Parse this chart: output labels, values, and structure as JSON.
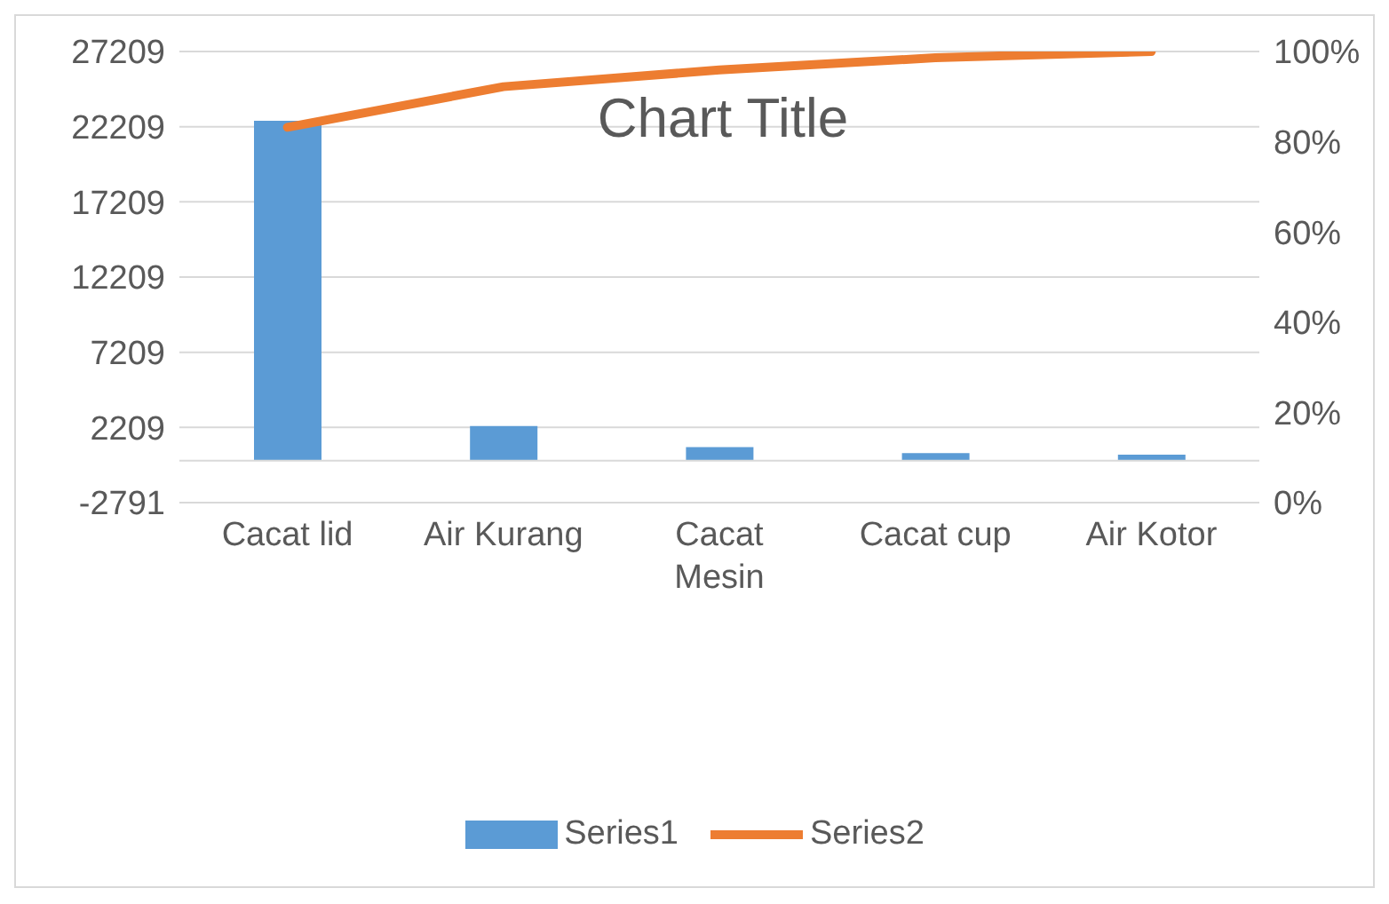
{
  "chart_data": {
    "type": "bar",
    "title": "Chart Title",
    "categories": [
      "Cacat lid",
      "Air Kurang",
      "Cacat Mesin",
      "Cacat cup",
      "Air Kotor"
    ],
    "series": [
      {
        "name": "Series1",
        "color": "#5b9bd5",
        "values": [
          22600,
          2300,
          900,
          500,
          400
        ]
      },
      {
        "name": "Series2",
        "type": "line",
        "axis": "y2",
        "color": "#ed7d31",
        "values": [
          83.2,
          92.2,
          95.9,
          98.6,
          100
        ]
      }
    ],
    "ylim": [
      -2791,
      27209
    ],
    "yticks": [
      -2791,
      2209,
      7209,
      12209,
      17209,
      22209,
      27209
    ],
    "y2lim": [
      0,
      100
    ],
    "y2ticks": [
      {
        "value": 0,
        "label": "0%"
      },
      {
        "value": 20,
        "label": "20%"
      },
      {
        "value": 40,
        "label": "40%"
      },
      {
        "value": 60,
        "label": "60%"
      },
      {
        "value": 80,
        "label": "80%"
      },
      {
        "value": 100,
        "label": "100%"
      }
    ],
    "grid": "y",
    "legend": "bottom",
    "marker": "none",
    "line_style": "solid"
  }
}
